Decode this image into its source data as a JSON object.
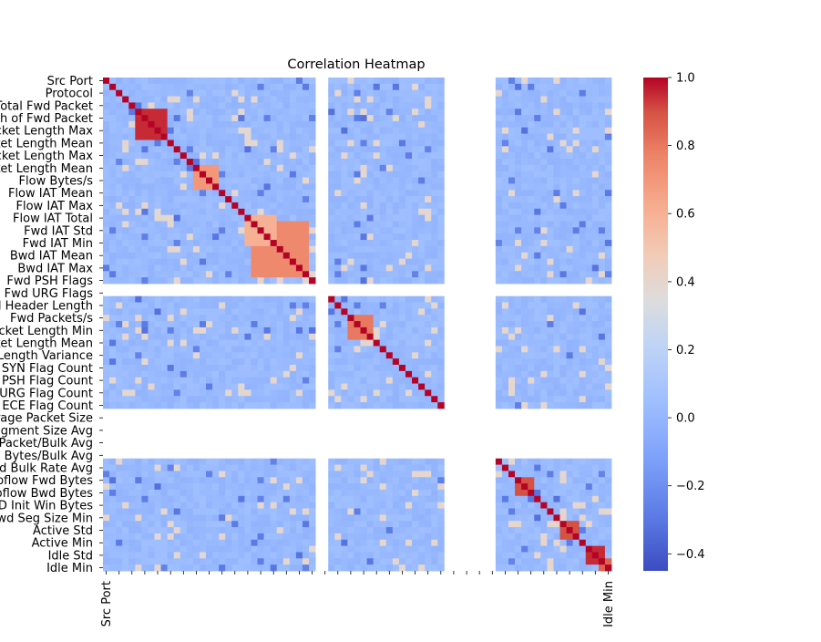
{
  "chart_data": {
    "type": "heatmap",
    "title": "Correlation Heatmap",
    "xlabel": "",
    "ylabel": "",
    "colormap": "coolwarm",
    "colorbar": {
      "range": [
        -0.45,
        1.0
      ],
      "ticks": [
        1.0,
        0.8,
        0.6,
        0.4,
        0.2,
        0.0,
        -0.2,
        -0.4
      ],
      "tick_labels": [
        "1.0",
        "0.8",
        "0.6",
        "0.4",
        "0.2",
        "0.0",
        "−0.2",
        "−0.4"
      ]
    },
    "x_tick_labels_visible": [
      "Src Port",
      "Idle Min"
    ],
    "y_tick_labels": [
      "Src Port",
      "Protocol",
      "Total Fwd Packet",
      "Total Length of Fwd Packet",
      "Fwd Packet Length Max",
      "Fwd Packet Length Mean",
      "Bwd Packet Length Max",
      "Bwd Packet Length Mean",
      "Flow Bytes/s",
      "Flow IAT Mean",
      "Flow IAT Max",
      "Flow IAT Total",
      "Fwd IAT Std",
      "Fwd IAT Min",
      "Bwd IAT Mean",
      "Bwd IAT Max",
      "Fwd PSH Flags",
      "Fwd URG Flags",
      "Fwd Header Length",
      "Fwd Packets/s",
      "Packet Length Min",
      "Packet Length Mean",
      "Packet Length Variance",
      "SYN Flag Count",
      "PSH Flag Count",
      "URG Flag Count",
      "ECE Flag Count",
      "Average Packet Size",
      "Fwd Segment Size Avg",
      "Fwd Packet/Bulk Avg",
      "Fwd Bytes/Bulk Avg",
      "Bwd Bulk Rate Avg",
      "Subflow Fwd Bytes",
      "Subflow Bwd Bytes",
      "FWD Init Win Bytes",
      "Fwd Seg Size Min",
      "Active Std",
      "Active Min",
      "Idle Std",
      "Idle Min"
    ],
    "n_features": 79,
    "blank_features": [
      33,
      34,
      53,
      54,
      55,
      56,
      57,
      58,
      59,
      60
    ],
    "values_note_omitted": "",
    "blocks": [
      {
        "rows": [
          5,
          9
        ],
        "cols": [
          5,
          9
        ],
        "value": 0.95
      },
      {
        "rows": [
          14,
          17
        ],
        "cols": [
          14,
          17
        ],
        "value": 0.7
      },
      {
        "rows": [
          23,
          31
        ],
        "cols": [
          23,
          31
        ],
        "value": 0.75
      },
      {
        "rows": [
          38,
          41
        ],
        "cols": [
          38,
          41
        ],
        "value": 0.8
      },
      {
        "rows": [
          22,
          26
        ],
        "cols": [
          22,
          26
        ],
        "value": 0.6
      },
      {
        "rows": [
          77,
          79
        ],
        "cols": [
          77,
          79
        ],
        "value": 0.85
      },
      {
        "rows": [
          64,
          66
        ],
        "cols": [
          64,
          66
        ],
        "value": 0.9
      },
      {
        "rows": [
          71,
          73
        ],
        "cols": [
          71,
          73
        ],
        "value": 0.9
      },
      {
        "rows": [
          75,
          77
        ],
        "cols": [
          75,
          77
        ],
        "value": 0.95
      }
    ]
  }
}
